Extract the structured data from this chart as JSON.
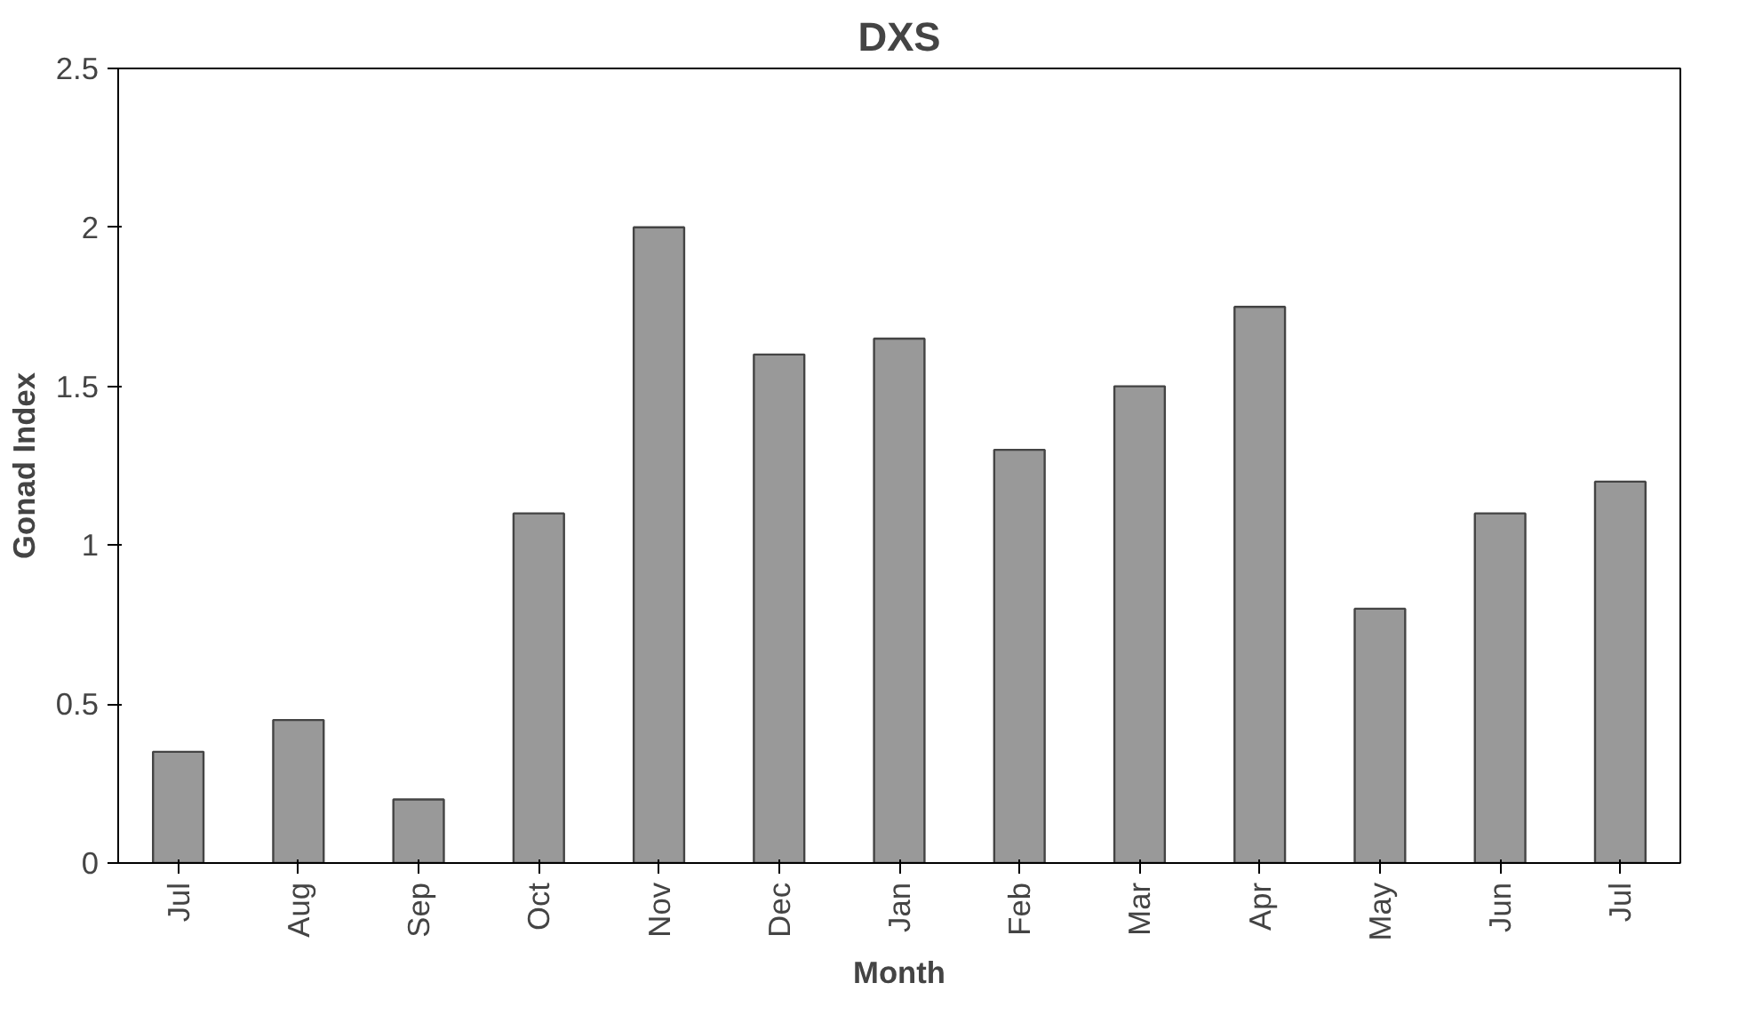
{
  "chart_data": {
    "type": "bar",
    "title": "DXS",
    "xlabel": "Month",
    "ylabel": "Gonad Index",
    "categories": [
      "Jul",
      "Aug",
      "Sep",
      "Oct",
      "Nov",
      "Dec",
      "Jan",
      "Feb",
      "Mar",
      "Apr",
      "May",
      "Jun",
      "Jul"
    ],
    "values": [
      0.35,
      0.45,
      0.2,
      1.1,
      2.0,
      1.6,
      1.65,
      1.3,
      1.5,
      1.75,
      0.8,
      1.1,
      1.2
    ],
    "color": "#999999",
    "ylim": [
      0,
      2.5
    ],
    "yticks": [
      0,
      {
        "value": 0.5,
        "label": "0.5"
      },
      1,
      {
        "value": 1.5,
        "label": "1.5"
      },
      2,
      {
        "value": 2.5,
        "label": "2.5"
      }
    ],
    "grid": false
  }
}
